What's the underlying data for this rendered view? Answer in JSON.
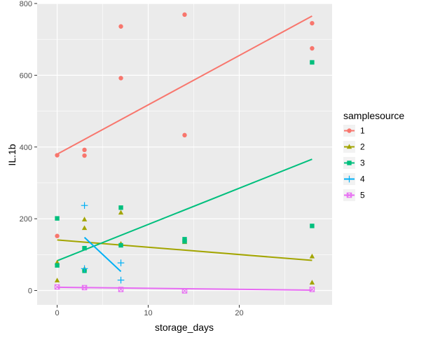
{
  "chart_data": {
    "type": "scatter",
    "title": "",
    "xlabel": "storage_days",
    "ylabel": "IL.1b",
    "xlim": [
      -2.2,
      30.2
    ],
    "ylim": [
      -40,
      800
    ],
    "xticks": [
      0,
      10,
      20
    ],
    "yticks": [
      0,
      200,
      400,
      600,
      800
    ],
    "grid": true,
    "legend": {
      "title": "samplesource",
      "placement": "right"
    },
    "series": [
      {
        "name": "1",
        "color": "#F8766D",
        "marker": "circle",
        "points": [
          [
            0,
            377
          ],
          [
            0,
            152
          ],
          [
            3,
            392
          ],
          [
            3,
            376
          ],
          [
            7,
            736
          ],
          [
            7,
            592
          ],
          [
            14,
            769
          ],
          [
            14,
            433
          ],
          [
            28,
            745
          ],
          [
            28,
            675
          ]
        ],
        "fit": [
          [
            0,
            380
          ],
          [
            28,
            765
          ]
        ]
      },
      {
        "name": "2",
        "color": "#A3A500",
        "marker": "triangle",
        "points": [
          [
            0,
            78
          ],
          [
            0,
            28
          ],
          [
            3,
            198
          ],
          [
            3,
            174
          ],
          [
            3,
            60
          ],
          [
            7,
            217
          ],
          [
            7,
            130
          ],
          [
            14,
            140
          ],
          [
            14,
            135
          ],
          [
            28,
            95
          ],
          [
            28,
            22
          ]
        ],
        "fit": [
          [
            0,
            141
          ],
          [
            28,
            84
          ]
        ]
      },
      {
        "name": "3",
        "color": "#00BF7D",
        "marker": "square",
        "points": [
          [
            0,
            201
          ],
          [
            0,
            70
          ],
          [
            3,
            118
          ],
          [
            3,
            55
          ],
          [
            7,
            231
          ],
          [
            7,
            126
          ],
          [
            14,
            143
          ],
          [
            14,
            137
          ],
          [
            28,
            636
          ],
          [
            28,
            180
          ]
        ],
        "fit": [
          [
            0,
            83
          ],
          [
            28,
            366
          ]
        ]
      },
      {
        "name": "4",
        "color": "#00B0F6",
        "marker": "plus",
        "points": [
          [
            3,
            237
          ],
          [
            3,
            61
          ],
          [
            7,
            77
          ],
          [
            7,
            29
          ]
        ],
        "fit": [
          [
            3,
            148
          ],
          [
            7,
            53
          ]
        ]
      },
      {
        "name": "5",
        "color": "#E76BF3",
        "marker": "square-cross",
        "points": [
          [
            0,
            10
          ],
          [
            3,
            8
          ],
          [
            7,
            3
          ],
          [
            14,
            -1
          ],
          [
            28,
            3
          ]
        ],
        "fit": [
          [
            0,
            9
          ],
          [
            28,
            1
          ]
        ]
      }
    ]
  }
}
